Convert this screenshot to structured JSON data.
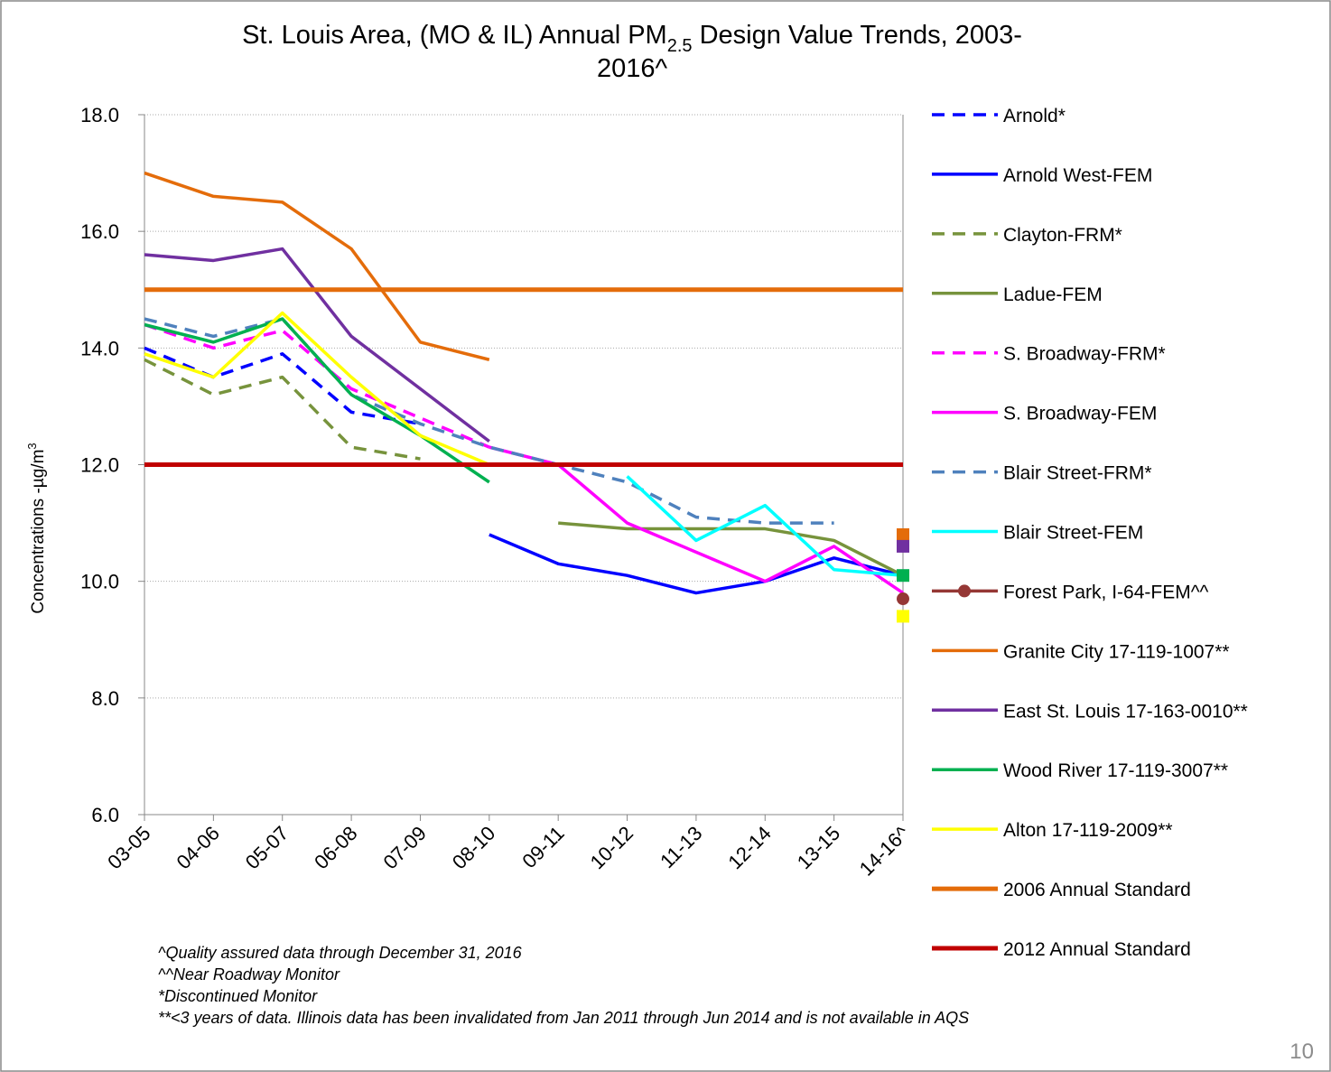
{
  "chart_data": {
    "type": "line",
    "title": {
      "line1": "St. Louis Area, (MO & IL) Annual PM",
      "subscript": "2.5",
      "line1_end": " Design Value Trends, 2003-",
      "line2": "2016^"
    },
    "y_label": {
      "text": "Concentrations -µg/m",
      "superscript": "3"
    },
    "categories": [
      "03-05",
      "04-06",
      "05-07",
      "06-08",
      "07-09",
      "08-10",
      "09-11",
      "10-12",
      "11-13",
      "12-14",
      "13-15",
      "14-16^"
    ],
    "ylim": [
      6,
      18
    ],
    "yticks": [
      {
        "value": 6,
        "label": "6.0"
      },
      {
        "value": 8,
        "label": "8.0"
      },
      {
        "value": 10,
        "label": "10.0"
      },
      {
        "value": 12,
        "label": "12.0"
      },
      {
        "value": 14,
        "label": "14.0"
      },
      {
        "value": 16,
        "label": "16.0"
      },
      {
        "value": 18,
        "label": "18.0"
      }
    ],
    "grid": true,
    "legend": "right",
    "series": [
      {
        "name": "Arnold*",
        "color": "#0000ff",
        "dash": true,
        "values": [
          14.0,
          13.5,
          13.9,
          12.9,
          12.7,
          null,
          null,
          null,
          null,
          null,
          null,
          null
        ]
      },
      {
        "name": "Arnold West-FEM",
        "color": "#0000ff",
        "values": [
          null,
          null,
          null,
          null,
          null,
          10.8,
          10.3,
          10.1,
          9.8,
          10.0,
          10.4,
          10.1
        ]
      },
      {
        "name": "Clayton-FRM*",
        "color": "#77933c",
        "dash": true,
        "values": [
          13.8,
          13.2,
          13.5,
          12.3,
          12.1,
          null,
          null,
          null,
          null,
          null,
          null,
          null
        ]
      },
      {
        "name": "Ladue-FEM",
        "color": "#77933c",
        "values": [
          null,
          null,
          null,
          null,
          null,
          null,
          11.0,
          10.9,
          10.9,
          10.9,
          10.7,
          10.1
        ]
      },
      {
        "name": "S. Broadway-FRM*",
        "color": "#ff00ff",
        "dash": true,
        "values": [
          14.4,
          14.0,
          14.3,
          13.3,
          12.8,
          12.3,
          null,
          null,
          null,
          null,
          null,
          null
        ]
      },
      {
        "name": "S. Broadway-FEM",
        "color": "#ff00ff",
        "values": [
          null,
          null,
          null,
          null,
          null,
          12.3,
          12.0,
          11.0,
          10.5,
          10.0,
          10.6,
          9.8
        ]
      },
      {
        "name": "Blair Street-FRM*",
        "color": "#4f81bd",
        "dash": true,
        "values": [
          14.5,
          14.2,
          14.5,
          13.2,
          12.7,
          12.3,
          12.0,
          11.7,
          11.1,
          11.0,
          11.0,
          null
        ]
      },
      {
        "name": "Blair Street-FEM",
        "color": "#00ffff",
        "values": [
          null,
          null,
          null,
          null,
          null,
          null,
          null,
          11.8,
          10.7,
          11.3,
          10.2,
          10.1
        ]
      },
      {
        "name": "Forest Park, I-64-FEM^^",
        "color": "#953735",
        "marker": "circle",
        "values": [
          null,
          null,
          null,
          null,
          null,
          null,
          null,
          null,
          null,
          null,
          null,
          9.7
        ]
      },
      {
        "name": "Granite City 17-119-1007**",
        "color": "#e46c0a",
        "marker": "square",
        "values": [
          17.0,
          16.6,
          16.5,
          15.7,
          14.1,
          13.8,
          null,
          null,
          null,
          null,
          null,
          10.8
        ]
      },
      {
        "name": "East St. Louis 17-163-0010**",
        "color": "#7030a0",
        "marker": "square",
        "values": [
          15.6,
          15.5,
          15.7,
          14.2,
          13.3,
          12.4,
          null,
          null,
          null,
          null,
          null,
          10.6
        ]
      },
      {
        "name": "Wood River 17-119-3007**",
        "color": "#00b050",
        "marker": "square",
        "values": [
          14.4,
          14.1,
          14.5,
          13.2,
          12.5,
          11.7,
          null,
          null,
          null,
          null,
          null,
          10.1
        ]
      },
      {
        "name": "Alton 17-119-2009**",
        "color": "#ffff00",
        "marker": "square",
        "values": [
          13.9,
          13.5,
          14.6,
          13.5,
          12.5,
          12.0,
          null,
          null,
          null,
          null,
          null,
          9.4
        ]
      },
      {
        "name": "2006 Annual Standard",
        "color": "#e46c0a",
        "width": 5,
        "values": [
          15,
          15,
          15,
          15,
          15,
          15,
          15,
          15,
          15,
          15,
          15,
          15
        ]
      },
      {
        "name": "2012 Annual Standard",
        "color": "#c00000",
        "width": 5,
        "values": [
          12,
          12,
          12,
          12,
          12,
          12,
          12,
          12,
          12,
          12,
          12,
          12
        ]
      }
    ],
    "footnotes": [
      "^Quality assured data through   December 31, 2016",
      "^^Near Roadway Monitor",
      "*Discontinued Monitor",
      "**<3 years of data. Illinois data has been invalidated from Jan 2011 through Jun 2014  and is not available in AQS"
    ],
    "page_number": "10"
  }
}
